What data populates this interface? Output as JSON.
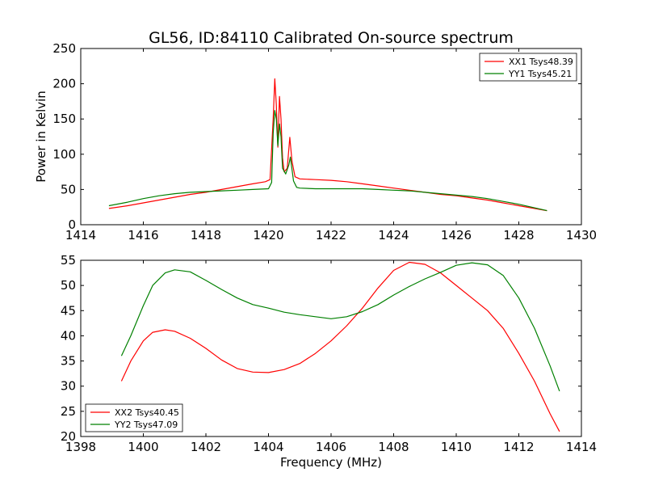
{
  "chart_data": [
    {
      "type": "line",
      "title": "GL56, ID:84110 Calibrated On-source spectrum",
      "xlabel": "",
      "ylabel": "Power in Kelvin",
      "xlim": [
        1414,
        1430
      ],
      "ylim": [
        0,
        250
      ],
      "xticks": [
        1414,
        1416,
        1418,
        1420,
        1422,
        1424,
        1426,
        1428,
        1430
      ],
      "yticks": [
        0,
        50,
        100,
        150,
        200,
        250
      ],
      "grid": false,
      "legend_position": "top-right",
      "series": [
        {
          "name": "XX1 Tsys48.39",
          "color": "#ff0000",
          "points": [
            [
              1414.9,
              23
            ],
            [
              1415.5,
              27
            ],
            [
              1416,
              31
            ],
            [
              1416.5,
              35
            ],
            [
              1417,
              39
            ],
            [
              1417.5,
              43
            ],
            [
              1418,
              46
            ],
            [
              1418.5,
              50
            ],
            [
              1419,
              54
            ],
            [
              1419.5,
              58
            ],
            [
              1419.9,
              61
            ],
            [
              1420.05,
              64
            ],
            [
              1420.15,
              150
            ],
            [
              1420.2,
              207
            ],
            [
              1420.25,
              170
            ],
            [
              1420.3,
              110
            ],
            [
              1420.35,
              182
            ],
            [
              1420.4,
              150
            ],
            [
              1420.45,
              95
            ],
            [
              1420.5,
              75
            ],
            [
              1420.6,
              80
            ],
            [
              1420.68,
              124
            ],
            [
              1420.75,
              90
            ],
            [
              1420.85,
              68
            ],
            [
              1421,
              65
            ],
            [
              1421.5,
              64
            ],
            [
              1422,
              63
            ],
            [
              1422.5,
              61
            ],
            [
              1423,
              58
            ],
            [
              1423.5,
              55
            ],
            [
              1424,
              52
            ],
            [
              1424.5,
              49
            ],
            [
              1425,
              46
            ],
            [
              1425.5,
              43
            ],
            [
              1426,
              41
            ],
            [
              1426.5,
              38
            ],
            [
              1427,
              35
            ],
            [
              1427.5,
              31
            ],
            [
              1428,
              27
            ],
            [
              1428.5,
              23
            ],
            [
              1428.9,
              20
            ]
          ]
        },
        {
          "name": "YY1 Tsys45.21",
          "color": "#008000",
          "points": [
            [
              1414.9,
              27
            ],
            [
              1415.5,
              32
            ],
            [
              1416,
              37
            ],
            [
              1416.5,
              41
            ],
            [
              1417,
              44
            ],
            [
              1417.5,
              46
            ],
            [
              1418,
              47
            ],
            [
              1418.5,
              48
            ],
            [
              1419,
              49
            ],
            [
              1419.5,
              50
            ],
            [
              1420,
              51
            ],
            [
              1420.1,
              60
            ],
            [
              1420.15,
              130
            ],
            [
              1420.2,
              162
            ],
            [
              1420.25,
              150
            ],
            [
              1420.3,
              112
            ],
            [
              1420.35,
              143
            ],
            [
              1420.4,
              125
            ],
            [
              1420.45,
              80
            ],
            [
              1420.55,
              72
            ],
            [
              1420.65,
              85
            ],
            [
              1420.7,
              96
            ],
            [
              1420.8,
              62
            ],
            [
              1420.9,
              53
            ],
            [
              1421,
              52
            ],
            [
              1421.5,
              51
            ],
            [
              1422,
              51
            ],
            [
              1422.5,
              51
            ],
            [
              1423,
              51
            ],
            [
              1423.5,
              50
            ],
            [
              1424,
              49
            ],
            [
              1424.5,
              48
            ],
            [
              1425,
              46
            ],
            [
              1425.5,
              44
            ],
            [
              1426,
              42
            ],
            [
              1426.5,
              40
            ],
            [
              1427,
              37
            ],
            [
              1427.5,
              33
            ],
            [
              1428,
              29
            ],
            [
              1428.5,
              24
            ],
            [
              1428.9,
              20
            ]
          ]
        }
      ]
    },
    {
      "type": "line",
      "title": "",
      "xlabel": "Frequency (MHz)",
      "ylabel": "",
      "xlim": [
        1398,
        1414
      ],
      "ylim": [
        20,
        55
      ],
      "xticks": [
        1398,
        1400,
        1402,
        1404,
        1406,
        1408,
        1410,
        1412,
        1414
      ],
      "yticks": [
        20,
        25,
        30,
        35,
        40,
        45,
        50,
        55
      ],
      "grid": false,
      "legend_position": "bottom-left",
      "series": [
        {
          "name": "XX2 Tsys40.45",
          "color": "#ff0000",
          "points": [
            [
              1399.3,
              31
            ],
            [
              1399.6,
              35
            ],
            [
              1400,
              39
            ],
            [
              1400.3,
              40.7
            ],
            [
              1400.7,
              41.2
            ],
            [
              1401,
              40.9
            ],
            [
              1401.5,
              39.5
            ],
            [
              1402,
              37.5
            ],
            [
              1402.5,
              35.2
            ],
            [
              1403,
              33.5
            ],
            [
              1403.5,
              32.8
            ],
            [
              1404,
              32.7
            ],
            [
              1404.5,
              33.3
            ],
            [
              1405,
              34.5
            ],
            [
              1405.5,
              36.5
            ],
            [
              1406,
              39
            ],
            [
              1406.5,
              42
            ],
            [
              1407,
              45.5
            ],
            [
              1407.5,
              49.5
            ],
            [
              1408,
              53
            ],
            [
              1408.5,
              54.6
            ],
            [
              1409,
              54.2
            ],
            [
              1409.5,
              52.5
            ],
            [
              1410,
              50
            ],
            [
              1410.5,
              47.5
            ],
            [
              1411,
              45
            ],
            [
              1411.5,
              41.5
            ],
            [
              1412,
              36.5
            ],
            [
              1412.5,
              31
            ],
            [
              1413,
              24.5
            ],
            [
              1413.3,
              21
            ]
          ]
        },
        {
          "name": "YY2 Tsys47.09",
          "color": "#008000",
          "points": [
            [
              1399.3,
              36
            ],
            [
              1399.6,
              40
            ],
            [
              1400,
              46
            ],
            [
              1400.3,
              50
            ],
            [
              1400.7,
              52.5
            ],
            [
              1401,
              53.1
            ],
            [
              1401.5,
              52.7
            ],
            [
              1402,
              51
            ],
            [
              1402.5,
              49.2
            ],
            [
              1403,
              47.5
            ],
            [
              1403.5,
              46.2
            ],
            [
              1404,
              45.5
            ],
            [
              1404.5,
              44.7
            ],
            [
              1405,
              44.2
            ],
            [
              1405.5,
              43.8
            ],
            [
              1406,
              43.4
            ],
            [
              1406.5,
              43.8
            ],
            [
              1407,
              44.8
            ],
            [
              1407.5,
              46.2
            ],
            [
              1408,
              48.1
            ],
            [
              1408.5,
              49.8
            ],
            [
              1409,
              51.3
            ],
            [
              1409.5,
              52.6
            ],
            [
              1410,
              54
            ],
            [
              1410.5,
              54.5
            ],
            [
              1411,
              54.1
            ],
            [
              1411.5,
              52
            ],
            [
              1412,
              47.5
            ],
            [
              1412.5,
              41.5
            ],
            [
              1413,
              34
            ],
            [
              1413.3,
              29
            ]
          ]
        }
      ]
    }
  ]
}
